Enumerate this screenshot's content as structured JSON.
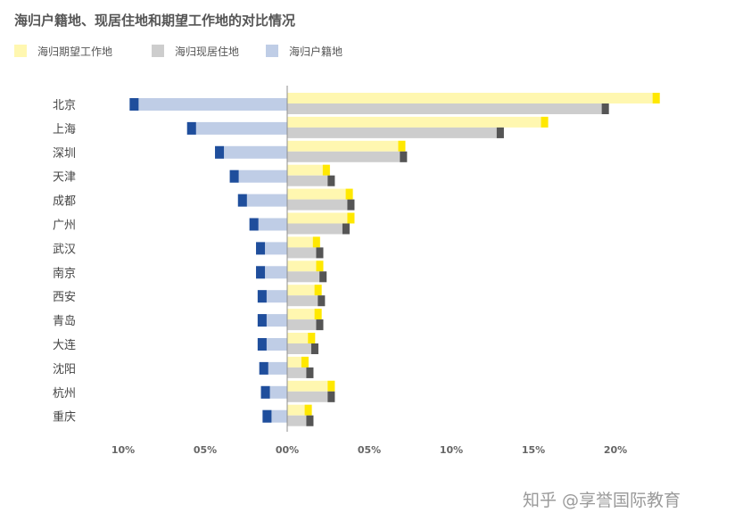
{
  "title": "海归户籍地、现居住地和期望工作地的对比情况",
  "watermark": "知乎 @享誉国际教育",
  "chart_data": {
    "type": "bar",
    "title": "海归户籍地、现居住地和期望工作地的对比情况",
    "categories": [
      "北京",
      "上海",
      "深圳",
      "天津",
      "成都",
      "广州",
      "武汉",
      "南京",
      "西安",
      "青岛",
      "大连",
      "沈阳",
      "杭州",
      "重庆"
    ],
    "series": [
      {
        "name": "海归期望工作地",
        "color": "#fff7b0",
        "accent": "#ffe800",
        "values": [
          22.7,
          15.9,
          7.2,
          2.6,
          4.0,
          4.1,
          2.0,
          2.2,
          2.1,
          2.1,
          1.7,
          1.3,
          2.9,
          1.5
        ]
      },
      {
        "name": "海归现居住地",
        "color": "#cdcdcd",
        "accent": "#555555",
        "values": [
          19.6,
          13.2,
          7.3,
          2.9,
          4.1,
          3.8,
          2.2,
          2.4,
          2.3,
          2.2,
          1.9,
          1.6,
          2.9,
          1.6
        ]
      },
      {
        "name": "海归户籍地",
        "color": "#bfcde6",
        "accent": "#1f4e9c",
        "values": [
          -9.6,
          -6.1,
          -4.4,
          -3.5,
          -3.0,
          -2.3,
          -1.9,
          -1.9,
          -1.8,
          -1.8,
          -1.8,
          -1.7,
          -1.6,
          -1.5
        ]
      }
    ],
    "xlim": [
      -10,
      22.7
    ],
    "xticks": [
      "10%",
      "05%",
      "00%",
      "05%",
      "10%",
      "15%",
      "20%"
    ],
    "xtick_values": [
      -10,
      -5,
      0,
      5,
      10,
      15,
      20
    ],
    "grid": false,
    "legend_position": "top-left"
  },
  "legend": [
    {
      "label": "海归期望工作地",
      "color": "#fff7b0"
    },
    {
      "label": "海归现居住地",
      "color": "#cdcdcd"
    },
    {
      "label": "海归户籍地",
      "color": "#bfcde6"
    }
  ]
}
